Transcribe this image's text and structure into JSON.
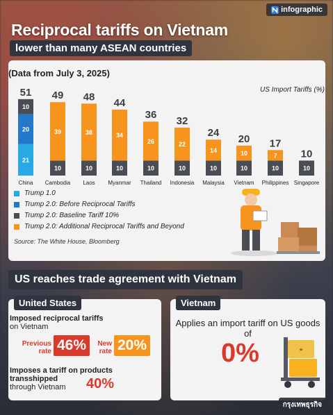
{
  "brand": "infographic",
  "title": "Reciprocal tariffs on Vietnam",
  "subtitle": "lower than many ASEAN countries",
  "chart_note": "(Data from July 3, 2025)",
  "chart_data": {
    "type": "bar",
    "stacked": true,
    "ylabel": "US Import Tariffs (%)",
    "categories": [
      "China",
      "Cambodia",
      "Laos",
      "Myanmar",
      "Thailand",
      "Indonesia",
      "Malaysia",
      "Vietnam",
      "Philippines",
      "Singapore"
    ],
    "totals": [
      51,
      49,
      48,
      44,
      36,
      32,
      24,
      20,
      17,
      10
    ],
    "series": [
      {
        "name": "Trump 1.0",
        "color": "#29a9e3",
        "values": [
          21,
          0,
          0,
          0,
          0,
          0,
          0,
          0,
          0,
          0
        ]
      },
      {
        "name": "Trump 2.0: Before Reciprocal Tariffs",
        "color": "#2478c8",
        "values": [
          20,
          0,
          0,
          0,
          0,
          0,
          0,
          0,
          0,
          0
        ]
      },
      {
        "name": "Trump 2.0: Baseline Tariff 10%",
        "color": "#4a4d53",
        "values": [
          10,
          10,
          10,
          10,
          10,
          10,
          10,
          10,
          10,
          10
        ]
      },
      {
        "name": "Trump 2.0: Additional Reciprocal Tariffs and Beyond",
        "color": "#f7941d",
        "values": [
          0,
          39,
          38,
          34,
          26,
          22,
          14,
          10,
          7,
          0
        ]
      }
    ],
    "stack_order_note": "China stacks blue, blue, grey; other countries grey at bottom with orange above",
    "grid": false,
    "legend_position": "bottom-left",
    "source": "Source: The White House, Bloomberg"
  },
  "section_title": "US reaches trade agreement with Vietnam",
  "us": {
    "tag": "United States",
    "line1_bold": "Imposed reciprocal tariffs",
    "line1_light": "on Vietnam",
    "previous_label": "Previous rate",
    "previous_value": "46%",
    "new_label": "New rate",
    "new_value": "20%",
    "line2_bold": "Imposes a tariff on products transshipped",
    "line2_light": "through Vietnam",
    "transship_value": "40%"
  },
  "vietnam": {
    "tag": "Vietnam",
    "text": "Applies an import tariff on US goods of",
    "value": "0%"
  },
  "footer": "กรุงเทพธุรกิจ",
  "colors": {
    "accent_red": "#d93a2b",
    "orange": "#f7941d",
    "dark": "#2f343e"
  },
  "icons": [
    "infographic-logo-icon",
    "worker-with-boxes-illustration",
    "cargo-cart-illustration"
  ]
}
